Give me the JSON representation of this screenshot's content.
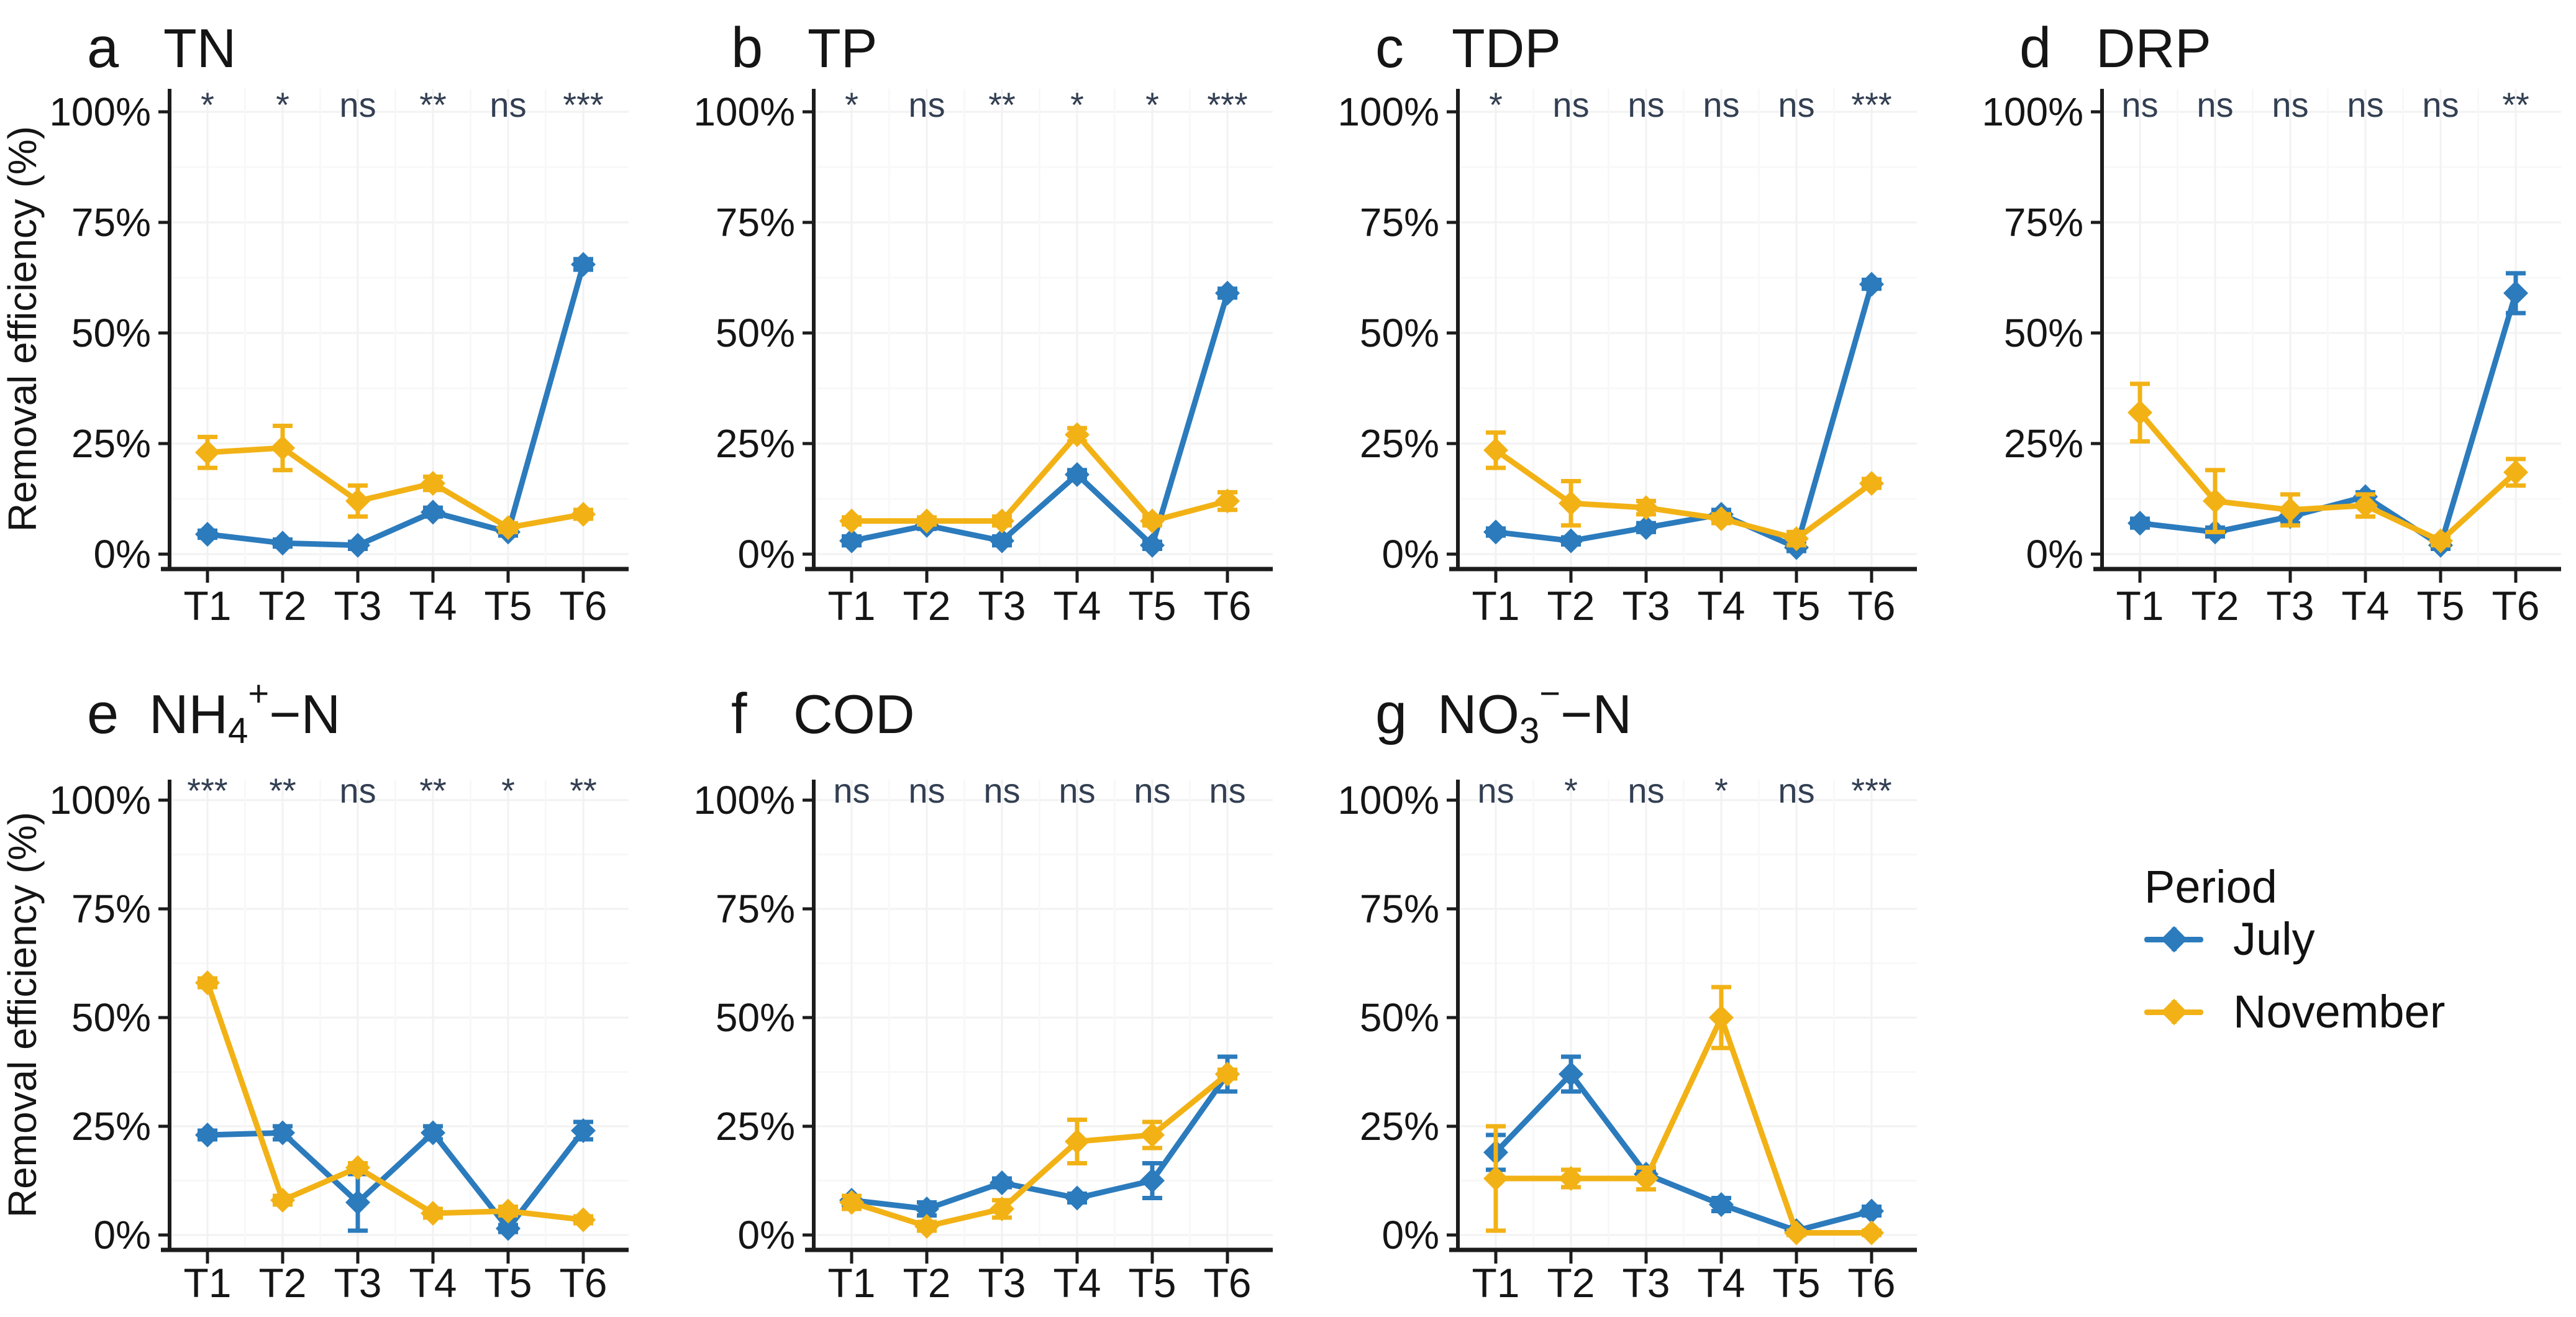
{
  "figure": {
    "ylabel": "Removal efficiency (%)",
    "x_categories": [
      "T1",
      "T2",
      "T3",
      "T4",
      "T5",
      "T6"
    ],
    "y_tick_labels": [
      "100%",
      "75%",
      "50%",
      "25%",
      "0%"
    ]
  },
  "legend": {
    "title": "Period",
    "items": [
      {
        "label": "July",
        "color": "#2b7bbd"
      },
      {
        "label": "November",
        "color": "#f2b216"
      }
    ]
  },
  "colors": {
    "july": "#2b7bbd",
    "november": "#f2b216",
    "significance_text": "#333f52",
    "axis": "#1c1c1c",
    "text": "#151515",
    "grid_major": "#f2f2f2",
    "grid_minor": "#f8f8f8",
    "background": "#ffffff"
  },
  "chart_data": [
    {
      "id": "a",
      "type": "line",
      "panel_label": "a",
      "title": "TN",
      "title_parts": [
        {
          "t": "TN"
        }
      ],
      "categories": [
        "T1",
        "T2",
        "T3",
        "T4",
        "T5",
        "T6"
      ],
      "ylim": [
        0,
        100
      ],
      "yticks": [
        0,
        25,
        50,
        75,
        100
      ],
      "significance": [
        "*",
        "*",
        "ns",
        "**",
        "ns",
        "***"
      ],
      "series": [
        {
          "name": "July",
          "values": [
            4.5,
            2.5,
            2,
            9.5,
            5,
            65.5
          ],
          "errors": [
            0.8,
            0.8,
            0.8,
            1,
            0.8,
            1.2
          ]
        },
        {
          "name": "November",
          "values": [
            23,
            24,
            12,
            16,
            6,
            9
          ],
          "errors": [
            3.5,
            5,
            3.5,
            1.5,
            1,
            1
          ]
        }
      ]
    },
    {
      "id": "b",
      "type": "line",
      "panel_label": "b",
      "title": "TP",
      "title_parts": [
        {
          "t": "TP"
        }
      ],
      "categories": [
        "T1",
        "T2",
        "T3",
        "T4",
        "T5",
        "T6"
      ],
      "ylim": [
        0,
        100
      ],
      "yticks": [
        0,
        25,
        50,
        75,
        100
      ],
      "significance": [
        "*",
        "ns",
        "**",
        "*",
        "*",
        "***"
      ],
      "series": [
        {
          "name": "July",
          "values": [
            3,
            6.5,
            3,
            18,
            2,
            59
          ],
          "errors": [
            1,
            0.8,
            1,
            1,
            0.8,
            1
          ]
        },
        {
          "name": "November",
          "values": [
            7.5,
            7.5,
            7.5,
            27,
            7.5,
            12
          ],
          "errors": [
            0.8,
            0.8,
            1,
            1.5,
            1,
            2
          ]
        }
      ]
    },
    {
      "id": "c",
      "type": "line",
      "panel_label": "c",
      "title": "TDP",
      "title_parts": [
        {
          "t": "TDP"
        }
      ],
      "categories": [
        "T1",
        "T2",
        "T3",
        "T4",
        "T5",
        "T6"
      ],
      "ylim": [
        0,
        100
      ],
      "yticks": [
        0,
        25,
        50,
        75,
        100
      ],
      "significance": [
        "*",
        "ns",
        "ns",
        "ns",
        "ns",
        "***"
      ],
      "series": [
        {
          "name": "July",
          "values": [
            5,
            3,
            6,
            9,
            1.5,
            61
          ],
          "errors": [
            0.8,
            0.8,
            1,
            1,
            0.8,
            1
          ]
        },
        {
          "name": "November",
          "values": [
            23.5,
            11.5,
            10.5,
            8,
            3.5,
            16
          ],
          "errors": [
            4,
            5,
            1.5,
            1,
            1.5,
            1
          ]
        }
      ]
    },
    {
      "id": "d",
      "type": "line",
      "panel_label": "d",
      "title": "DRP",
      "title_parts": [
        {
          "t": "DRP"
        }
      ],
      "categories": [
        "T1",
        "T2",
        "T3",
        "T4",
        "T5",
        "T6"
      ],
      "ylim": [
        0,
        100
      ],
      "yticks": [
        0,
        25,
        50,
        75,
        100
      ],
      "significance": [
        "ns",
        "ns",
        "ns",
        "ns",
        "ns",
        "**"
      ],
      "series": [
        {
          "name": "July",
          "values": [
            7,
            5,
            8.5,
            13,
            2,
            59
          ],
          "errors": [
            1,
            1,
            1.5,
            1,
            0.8,
            4.5
          ]
        },
        {
          "name": "November",
          "values": [
            32,
            12,
            10,
            11,
            3,
            18.5
          ],
          "errors": [
            6.5,
            7,
            3.5,
            2.5,
            1,
            3
          ]
        }
      ]
    },
    {
      "id": "e",
      "type": "line",
      "panel_label": "e",
      "title": "NH₄⁺−N",
      "title_parts": [
        {
          "t": "NH"
        },
        {
          "t": "4",
          "s": "sub"
        },
        {
          "t": "+",
          "s": "sup"
        },
        {
          "t": "−N"
        }
      ],
      "categories": [
        "T1",
        "T2",
        "T3",
        "T4",
        "T5",
        "T6"
      ],
      "ylim": [
        0,
        100
      ],
      "yticks": [
        0,
        25,
        50,
        75,
        100
      ],
      "significance": [
        "***",
        "**",
        "ns",
        "**",
        "*",
        "**"
      ],
      "series": [
        {
          "name": "July",
          "values": [
            23,
            23.5,
            7.5,
            23.5,
            1.5,
            24
          ],
          "errors": [
            1,
            1.5,
            6.5,
            1.5,
            0.8,
            2
          ]
        },
        {
          "name": "November",
          "values": [
            58,
            8,
            15.5,
            5,
            5.5,
            3.5
          ],
          "errors": [
            1,
            1,
            1,
            1,
            1,
            0.8
          ]
        }
      ]
    },
    {
      "id": "f",
      "type": "line",
      "panel_label": "f",
      "title": "COD",
      "title_parts": [
        {
          "t": "COD"
        }
      ],
      "categories": [
        "T1",
        "T2",
        "T3",
        "T4",
        "T5",
        "T6"
      ],
      "ylim": [
        0,
        100
      ],
      "yticks": [
        0,
        25,
        50,
        75,
        100
      ],
      "significance": [
        "ns",
        "ns",
        "ns",
        "ns",
        "ns",
        "ns"
      ],
      "series": [
        {
          "name": "July",
          "values": [
            8,
            6,
            12,
            8.5,
            12.5,
            37
          ],
          "errors": [
            1,
            1.5,
            1,
            1,
            4,
            4
          ]
        },
        {
          "name": "November",
          "values": [
            7.5,
            2,
            6,
            21.5,
            23,
            37
          ],
          "errors": [
            1.5,
            1,
            2,
            5,
            3,
            1
          ]
        }
      ]
    },
    {
      "id": "g",
      "type": "line",
      "panel_label": "g",
      "title": "NO₃⁻−N",
      "title_parts": [
        {
          "t": "NO"
        },
        {
          "t": "3",
          "s": "sub"
        },
        {
          "t": "−",
          "s": "sup"
        },
        {
          "t": "−N"
        }
      ],
      "categories": [
        "T1",
        "T2",
        "T3",
        "T4",
        "T5",
        "T6"
      ],
      "ylim": [
        0,
        100
      ],
      "yticks": [
        0,
        25,
        50,
        75,
        100
      ],
      "significance": [
        "ns",
        "*",
        "ns",
        "*",
        "ns",
        "***"
      ],
      "series": [
        {
          "name": "July",
          "values": [
            19,
            37,
            14,
            7,
            1,
            5.5
          ],
          "errors": [
            4,
            4,
            1,
            1.5,
            0.5,
            1
          ]
        },
        {
          "name": "November",
          "values": [
            13,
            13,
            13,
            50,
            0.5,
            0.5
          ],
          "errors": [
            12,
            2,
            2.5,
            7,
            0.5,
            0.5
          ]
        }
      ]
    }
  ]
}
